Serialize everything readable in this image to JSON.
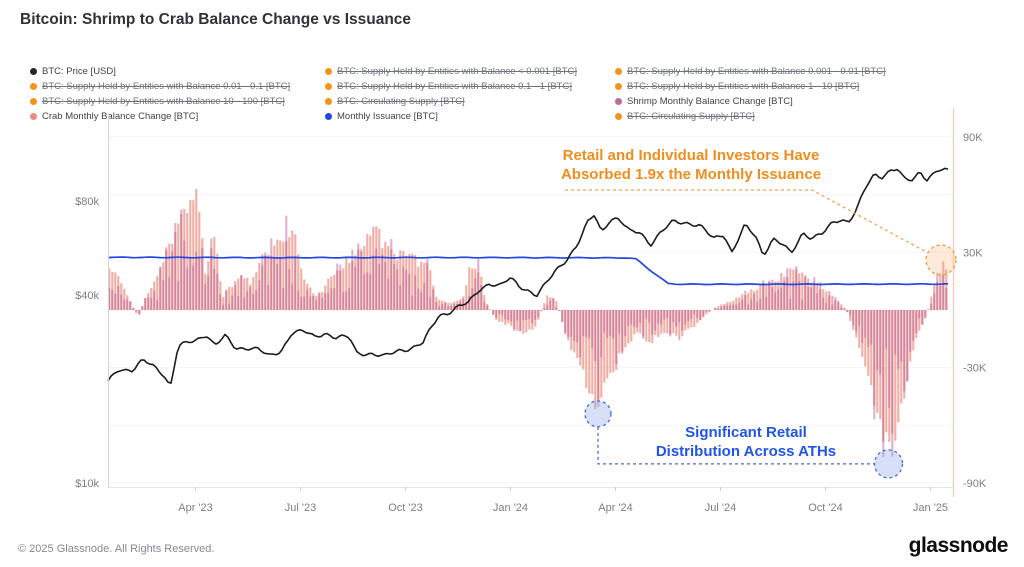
{
  "title": "Bitcoin: Shrimp to Crab Balance Change vs Issuance",
  "legend": {
    "items": [
      {
        "label": "BTC: Price [USD]",
        "color": "#26262a",
        "struck": false
      },
      {
        "label": "BTC: Supply Held by Entities with Balance < 0.001 [BTC]",
        "color": "#f7931a",
        "struck": true
      },
      {
        "label": "BTC: Supply Held by Entities with Balance 0.001 - 0.01 [BTC]",
        "color": "#f7931a",
        "struck": true
      },
      {
        "label": "BTC: Supply Held by Entities with Balance 0.01 - 0.1 [BTC]",
        "color": "#f7931a",
        "struck": true
      },
      {
        "label": "BTC: Supply Held by Entities with Balance 0.1 - 1 [BTC]",
        "color": "#f7931a",
        "struck": true
      },
      {
        "label": "BTC: Supply Held by Entities with Balance 1 - 10 [BTC]",
        "color": "#f7931a",
        "struck": true
      },
      {
        "label": "BTC: Supply Held by Entities with Balance 10 - 100 [BTC]",
        "color": "#f7931a",
        "struck": true
      },
      {
        "label": "BTC: Circulating Supply [BTC]",
        "color": "#f7931a",
        "struck": true
      },
      {
        "label": "Shrimp Monthly Balance Change [BTC]",
        "color": "#c0679b",
        "struck": false
      },
      {
        "label": "Crab Monthly Balance Change [BTC]",
        "color": "#ec897b",
        "struck": false
      },
      {
        "label": "Monthly Issuance [BTC]",
        "color": "#2447e1",
        "struck": false
      },
      {
        "label": "BTC: Circulating Supply [BTC]",
        "color": "#f7931a",
        "struck": true
      }
    ]
  },
  "annotations": {
    "orange": {
      "line1": "Retail and Individual Investors Have",
      "line2": "Absorbed 1.9x the Monthly Issuance",
      "color": "#ef8e1e",
      "circle": {
        "t": 23.8,
        "v": 26000
      }
    },
    "blue": {
      "line1": "Significant Retail",
      "line2": "Distribution Across ATHs",
      "color": "#2255e6",
      "circles": [
        {
          "t": 14.0,
          "v": -54000
        },
        {
          "t": 22.3,
          "v": -80000
        }
      ]
    }
  },
  "chart_data": {
    "type": "mixed",
    "time_axis": {
      "unit": "months since mid-Jan 2023",
      "range": [
        0,
        24
      ],
      "note": "mid-Jan 2023 to mid-Jan 2025"
    },
    "x_ticks": [
      {
        "label": "Apr '23",
        "t": 2.5
      },
      {
        "label": "Jul '23",
        "t": 5.5
      },
      {
        "label": "Oct '23",
        "t": 8.5
      },
      {
        "label": "Jan '24",
        "t": 11.5
      },
      {
        "label": "Apr '24",
        "t": 14.5
      },
      {
        "label": "Jul '24",
        "t": 17.5
      },
      {
        "label": "Oct '24",
        "t": 20.5
      },
      {
        "label": "Jan '25",
        "t": 23.5
      }
    ],
    "left_axis": {
      "scale": "log",
      "title": "BTC: Price [USD]",
      "ticks": [
        {
          "label": "$80k",
          "value": 80000
        },
        {
          "label": "$40k",
          "value": 40000
        },
        {
          "label": "$10k",
          "value": 10000
        }
      ]
    },
    "right_axis": {
      "scale": "linear",
      "title": "Balance Change / Issuance [BTC]",
      "gridline_step": 30000,
      "ticks": [
        {
          "label": "90K",
          "value": 90000
        },
        {
          "label": "30K",
          "value": 30000
        },
        {
          "label": "-30K",
          "value": -30000
        },
        {
          "label": "-90K",
          "value": -90000
        }
      ]
    },
    "series": [
      {
        "name": "BTC: Price [USD]",
        "type": "line",
        "axis": "left",
        "color": "#1c1c20",
        "points": [
          [
            0,
            21000
          ],
          [
            0.3,
            23200
          ],
          [
            0.7,
            23000
          ],
          [
            1.0,
            24600
          ],
          [
            1.3,
            23600
          ],
          [
            1.6,
            22300
          ],
          [
            1.78,
            20300
          ],
          [
            2.0,
            27300
          ],
          [
            2.3,
            28100
          ],
          [
            2.5,
            28500
          ],
          [
            2.8,
            30100
          ],
          [
            3.05,
            27600
          ],
          [
            3.35,
            29400
          ],
          [
            3.65,
            26900
          ],
          [
            4.0,
            27200
          ],
          [
            4.3,
            26800
          ],
          [
            4.6,
            25300
          ],
          [
            4.95,
            26500
          ],
          [
            5.25,
            30400
          ],
          [
            5.6,
            30500
          ],
          [
            5.9,
            29300
          ],
          [
            6.2,
            30300
          ],
          [
            6.5,
            29200
          ],
          [
            6.9,
            29200
          ],
          [
            7.1,
            26100
          ],
          [
            7.5,
            26000
          ],
          [
            7.9,
            25300
          ],
          [
            8.3,
            26600
          ],
          [
            8.7,
            27100
          ],
          [
            9.0,
            28000
          ],
          [
            9.25,
            31500
          ],
          [
            9.45,
            34400
          ],
          [
            9.7,
            35100
          ],
          [
            10.0,
            36600
          ],
          [
            10.3,
            37600
          ],
          [
            10.6,
            41600
          ],
          [
            10.9,
            43700
          ],
          [
            11.2,
            42600
          ],
          [
            11.5,
            45200
          ],
          [
            11.75,
            42800
          ],
          [
            12.0,
            41500
          ],
          [
            12.25,
            39800
          ],
          [
            12.5,
            43100
          ],
          [
            12.8,
            48000
          ],
          [
            13.1,
            52200
          ],
          [
            13.4,
            57500
          ],
          [
            13.7,
            67800
          ],
          [
            13.9,
            72500
          ],
          [
            14.1,
            63800
          ],
          [
            14.35,
            70200
          ],
          [
            14.6,
            69800
          ],
          [
            14.9,
            63700
          ],
          [
            15.2,
            63900
          ],
          [
            15.5,
            58200
          ],
          [
            15.8,
            63200
          ],
          [
            16.15,
            68800
          ],
          [
            16.5,
            68500
          ],
          [
            16.9,
            66600
          ],
          [
            17.3,
            60500
          ],
          [
            17.6,
            62900
          ],
          [
            17.82,
            54800
          ],
          [
            18.2,
            66600
          ],
          [
            18.5,
            61600
          ],
          [
            18.72,
            53800
          ],
          [
            19.0,
            60800
          ],
          [
            19.3,
            57600
          ],
          [
            19.52,
            53900
          ],
          [
            19.85,
            63500
          ],
          [
            20.1,
            61200
          ],
          [
            20.4,
            62600
          ],
          [
            20.7,
            67600
          ],
          [
            20.95,
            70100
          ],
          [
            21.15,
            68700
          ],
          [
            21.4,
            75800
          ],
          [
            21.65,
            88200
          ],
          [
            21.9,
            96800
          ],
          [
            22.1,
            95600
          ],
          [
            22.35,
            100800
          ],
          [
            22.55,
            101900
          ],
          [
            22.75,
            93400
          ],
          [
            23.0,
            92800
          ],
          [
            23.2,
            99600
          ],
          [
            23.4,
            94200
          ],
          [
            23.7,
            100800
          ],
          [
            24,
            99500
          ]
        ]
      },
      {
        "name": "Monthly Issuance [BTC]",
        "type": "line",
        "axis": "right",
        "color": "#2447e1",
        "points": [
          [
            0,
            27400
          ],
          [
            5,
            27200
          ],
          [
            10,
            27300
          ],
          [
            14.8,
            27100
          ],
          [
            15.1,
            26500
          ],
          [
            15.5,
            20500
          ],
          [
            16.0,
            13800
          ],
          [
            16.3,
            13400
          ],
          [
            20,
            13400
          ],
          [
            24,
            13500
          ]
        ]
      },
      {
        "name": "Shrimp + Crab Monthly Balance Change [BTC]",
        "type": "bars",
        "axis": "right",
        "colors": {
          "crab": "rgba(229,91,73,0.5)",
          "shrimp": "rgba(184,82,140,0.45)"
        },
        "envelope_points": [
          [
            0,
            26000
          ],
          [
            0.3,
            18000
          ],
          [
            0.55,
            8000
          ],
          [
            0.86,
            -4000
          ],
          [
            1.1,
            8000
          ],
          [
            1.4,
            18000
          ],
          [
            1.63,
            30000
          ],
          [
            1.85,
            42000
          ],
          [
            2.1,
            52000
          ],
          [
            2.3,
            60000
          ],
          [
            2.5,
            66000
          ],
          [
            2.65,
            58000
          ],
          [
            2.8,
            17000
          ],
          [
            3.0,
            45000
          ],
          [
            3.1,
            40000
          ],
          [
            3.25,
            6000
          ],
          [
            3.5,
            14000
          ],
          [
            3.8,
            18000
          ],
          [
            4.1,
            16000
          ],
          [
            4.4,
            28000
          ],
          [
            4.7,
            36000
          ],
          [
            5.1,
            45000
          ],
          [
            5.35,
            40000
          ],
          [
            5.6,
            20000
          ],
          [
            5.9,
            7000
          ],
          [
            6.1,
            10000
          ],
          [
            6.4,
            20000
          ],
          [
            6.8,
            28000
          ],
          [
            7.2,
            33000
          ],
          [
            7.6,
            47000
          ],
          [
            7.9,
            38000
          ],
          [
            8.2,
            33000
          ],
          [
            8.6,
            30000
          ],
          [
            9.0,
            27000
          ],
          [
            9.2,
            24000
          ],
          [
            9.4,
            6000
          ],
          [
            9.7,
            4000
          ],
          [
            10.0,
            5000
          ],
          [
            10.2,
            10000
          ],
          [
            10.35,
            26000
          ],
          [
            10.6,
            24000
          ],
          [
            10.8,
            5000
          ],
          [
            11.1,
            -6000
          ],
          [
            11.5,
            -9000
          ],
          [
            11.9,
            -13000
          ],
          [
            12.2,
            -10000
          ],
          [
            12.55,
            8000
          ],
          [
            12.8,
            6000
          ],
          [
            13.0,
            -8000
          ],
          [
            13.2,
            -20000
          ],
          [
            13.5,
            -35000
          ],
          [
            13.75,
            -46000
          ],
          [
            14.0,
            -54000
          ],
          [
            14.25,
            -42000
          ],
          [
            14.5,
            -30000
          ],
          [
            14.8,
            -20000
          ],
          [
            15.1,
            -14000
          ],
          [
            15.5,
            -18000
          ],
          [
            15.9,
            -12000
          ],
          [
            16.3,
            -16000
          ],
          [
            16.7,
            -10000
          ],
          [
            17.0,
            -4000
          ],
          [
            17.4,
            2000
          ],
          [
            17.9,
            6000
          ],
          [
            18.3,
            10000
          ],
          [
            18.7,
            14000
          ],
          [
            19.1,
            18000
          ],
          [
            19.5,
            22000
          ],
          [
            19.9,
            20000
          ],
          [
            20.3,
            14000
          ],
          [
            20.7,
            8000
          ],
          [
            21.1,
            0
          ],
          [
            21.4,
            -18000
          ],
          [
            21.7,
            -40000
          ],
          [
            22.0,
            -62000
          ],
          [
            22.3,
            -80000
          ],
          [
            22.5,
            -70000
          ],
          [
            22.8,
            -40000
          ],
          [
            23.1,
            -16000
          ],
          [
            23.4,
            -2000
          ],
          [
            23.65,
            16000
          ],
          [
            23.85,
            26000
          ],
          [
            24,
            22000
          ]
        ]
      }
    ]
  },
  "footer": {
    "copyright": "© 2025 Glassnode. All Rights Reserved.",
    "logo": "glassnode"
  }
}
